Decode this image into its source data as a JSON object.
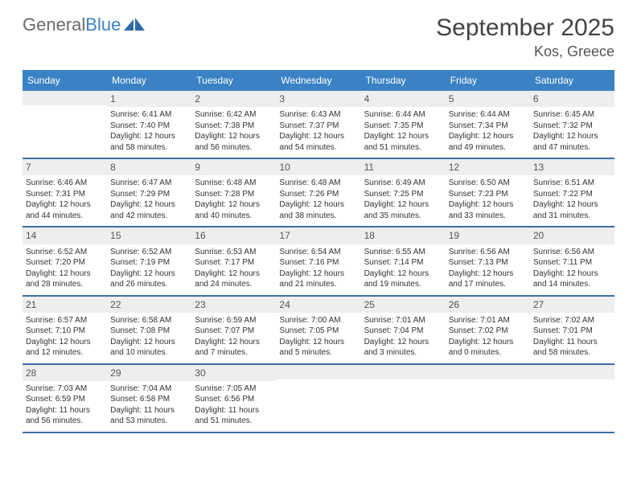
{
  "logo": {
    "word1": "General",
    "word2": "Blue"
  },
  "title": "September 2025",
  "location": "Kos, Greece",
  "colors": {
    "header_bg": "#3b82c4",
    "header_text": "#ffffff",
    "daynum_bg": "#eeeeee",
    "row_border": "#3b6fa3",
    "text": "#333333"
  },
  "weekdays": [
    "Sunday",
    "Monday",
    "Tuesday",
    "Wednesday",
    "Thursday",
    "Friday",
    "Saturday"
  ],
  "weeks": [
    [
      {
        "n": "",
        "lines": []
      },
      {
        "n": "1",
        "lines": [
          "Sunrise: 6:41 AM",
          "Sunset: 7:40 PM",
          "Daylight: 12 hours and 58 minutes."
        ]
      },
      {
        "n": "2",
        "lines": [
          "Sunrise: 6:42 AM",
          "Sunset: 7:38 PM",
          "Daylight: 12 hours and 56 minutes."
        ]
      },
      {
        "n": "3",
        "lines": [
          "Sunrise: 6:43 AM",
          "Sunset: 7:37 PM",
          "Daylight: 12 hours and 54 minutes."
        ]
      },
      {
        "n": "4",
        "lines": [
          "Sunrise: 6:44 AM",
          "Sunset: 7:35 PM",
          "Daylight: 12 hours and 51 minutes."
        ]
      },
      {
        "n": "5",
        "lines": [
          "Sunrise: 6:44 AM",
          "Sunset: 7:34 PM",
          "Daylight: 12 hours and 49 minutes."
        ]
      },
      {
        "n": "6",
        "lines": [
          "Sunrise: 6:45 AM",
          "Sunset: 7:32 PM",
          "Daylight: 12 hours and 47 minutes."
        ]
      }
    ],
    [
      {
        "n": "7",
        "lines": [
          "Sunrise: 6:46 AM",
          "Sunset: 7:31 PM",
          "Daylight: 12 hours and 44 minutes."
        ]
      },
      {
        "n": "8",
        "lines": [
          "Sunrise: 6:47 AM",
          "Sunset: 7:29 PM",
          "Daylight: 12 hours and 42 minutes."
        ]
      },
      {
        "n": "9",
        "lines": [
          "Sunrise: 6:48 AM",
          "Sunset: 7:28 PM",
          "Daylight: 12 hours and 40 minutes."
        ]
      },
      {
        "n": "10",
        "lines": [
          "Sunrise: 6:48 AM",
          "Sunset: 7:26 PM",
          "Daylight: 12 hours and 38 minutes."
        ]
      },
      {
        "n": "11",
        "lines": [
          "Sunrise: 6:49 AM",
          "Sunset: 7:25 PM",
          "Daylight: 12 hours and 35 minutes."
        ]
      },
      {
        "n": "12",
        "lines": [
          "Sunrise: 6:50 AM",
          "Sunset: 7:23 PM",
          "Daylight: 12 hours and 33 minutes."
        ]
      },
      {
        "n": "13",
        "lines": [
          "Sunrise: 6:51 AM",
          "Sunset: 7:22 PM",
          "Daylight: 12 hours and 31 minutes."
        ]
      }
    ],
    [
      {
        "n": "14",
        "lines": [
          "Sunrise: 6:52 AM",
          "Sunset: 7:20 PM",
          "Daylight: 12 hours and 28 minutes."
        ]
      },
      {
        "n": "15",
        "lines": [
          "Sunrise: 6:52 AM",
          "Sunset: 7:19 PM",
          "Daylight: 12 hours and 26 minutes."
        ]
      },
      {
        "n": "16",
        "lines": [
          "Sunrise: 6:53 AM",
          "Sunset: 7:17 PM",
          "Daylight: 12 hours and 24 minutes."
        ]
      },
      {
        "n": "17",
        "lines": [
          "Sunrise: 6:54 AM",
          "Sunset: 7:16 PM",
          "Daylight: 12 hours and 21 minutes."
        ]
      },
      {
        "n": "18",
        "lines": [
          "Sunrise: 6:55 AM",
          "Sunset: 7:14 PM",
          "Daylight: 12 hours and 19 minutes."
        ]
      },
      {
        "n": "19",
        "lines": [
          "Sunrise: 6:56 AM",
          "Sunset: 7:13 PM",
          "Daylight: 12 hours and 17 minutes."
        ]
      },
      {
        "n": "20",
        "lines": [
          "Sunrise: 6:56 AM",
          "Sunset: 7:11 PM",
          "Daylight: 12 hours and 14 minutes."
        ]
      }
    ],
    [
      {
        "n": "21",
        "lines": [
          "Sunrise: 6:57 AM",
          "Sunset: 7:10 PM",
          "Daylight: 12 hours and 12 minutes."
        ]
      },
      {
        "n": "22",
        "lines": [
          "Sunrise: 6:58 AM",
          "Sunset: 7:08 PM",
          "Daylight: 12 hours and 10 minutes."
        ]
      },
      {
        "n": "23",
        "lines": [
          "Sunrise: 6:59 AM",
          "Sunset: 7:07 PM",
          "Daylight: 12 hours and 7 minutes."
        ]
      },
      {
        "n": "24",
        "lines": [
          "Sunrise: 7:00 AM",
          "Sunset: 7:05 PM",
          "Daylight: 12 hours and 5 minutes."
        ]
      },
      {
        "n": "25",
        "lines": [
          "Sunrise: 7:01 AM",
          "Sunset: 7:04 PM",
          "Daylight: 12 hours and 3 minutes."
        ]
      },
      {
        "n": "26",
        "lines": [
          "Sunrise: 7:01 AM",
          "Sunset: 7:02 PM",
          "Daylight: 12 hours and 0 minutes."
        ]
      },
      {
        "n": "27",
        "lines": [
          "Sunrise: 7:02 AM",
          "Sunset: 7:01 PM",
          "Daylight: 11 hours and 58 minutes."
        ]
      }
    ],
    [
      {
        "n": "28",
        "lines": [
          "Sunrise: 7:03 AM",
          "Sunset: 6:59 PM",
          "Daylight: 11 hours and 56 minutes."
        ]
      },
      {
        "n": "29",
        "lines": [
          "Sunrise: 7:04 AM",
          "Sunset: 6:58 PM",
          "Daylight: 11 hours and 53 minutes."
        ]
      },
      {
        "n": "30",
        "lines": [
          "Sunrise: 7:05 AM",
          "Sunset: 6:56 PM",
          "Daylight: 11 hours and 51 minutes."
        ]
      },
      {
        "n": "",
        "lines": []
      },
      {
        "n": "",
        "lines": []
      },
      {
        "n": "",
        "lines": []
      },
      {
        "n": "",
        "lines": []
      }
    ]
  ]
}
